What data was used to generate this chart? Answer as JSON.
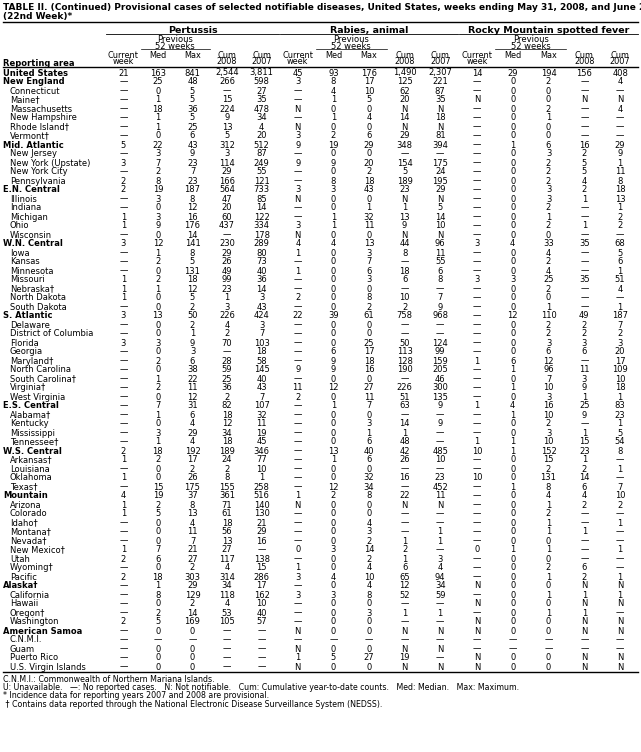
{
  "title_line1": "TABLE II. (Continued) Provisional cases of selected notifiable diseases, United States, weeks ending May 31, 2008, and June 2, 2007",
  "title_line2": "(22nd Week)*",
  "col_groups": [
    "Pertussis",
    "Rabies, animal",
    "Rocky Mountain spotted fever"
  ],
  "rows": [
    [
      "United States",
      "21",
      "163",
      "841",
      "2,544",
      "3,811",
      "45",
      "93",
      "176",
      "1,490",
      "2,307",
      "14",
      "29",
      "194",
      "156",
      "408"
    ],
    [
      "New England",
      "—",
      "25",
      "48",
      "266",
      "598",
      "3",
      "8",
      "17",
      "125",
      "221",
      "—",
      "0",
      "2",
      "—",
      "4"
    ],
    [
      "Connecticut",
      "—",
      "0",
      "5",
      "—",
      "27",
      "—",
      "4",
      "10",
      "62",
      "87",
      "—",
      "0",
      "0",
      "—",
      "—"
    ],
    [
      "Maine†",
      "—",
      "1",
      "5",
      "15",
      "35",
      "—",
      "1",
      "5",
      "20",
      "35",
      "N",
      "0",
      "0",
      "N",
      "N"
    ],
    [
      "Massachusetts",
      "—",
      "18",
      "36",
      "224",
      "478",
      "N",
      "0",
      "0",
      "N",
      "N",
      "—",
      "0",
      "2",
      "—",
      "4"
    ],
    [
      "New Hampshire",
      "—",
      "1",
      "5",
      "9",
      "34",
      "—",
      "1",
      "4",
      "14",
      "18",
      "—",
      "0",
      "1",
      "—",
      "—"
    ],
    [
      "Rhode Island†",
      "—",
      "1",
      "25",
      "13",
      "4",
      "N",
      "0",
      "0",
      "N",
      "N",
      "—",
      "0",
      "0",
      "—",
      "—"
    ],
    [
      "Vermont†",
      "—",
      "0",
      "6",
      "5",
      "20",
      "3",
      "2",
      "6",
      "29",
      "81",
      "—",
      "0",
      "0",
      "—",
      "—"
    ],
    [
      "Mid. Atlantic",
      "5",
      "22",
      "43",
      "312",
      "512",
      "9",
      "19",
      "29",
      "348",
      "394",
      "—",
      "1",
      "6",
      "16",
      "29"
    ],
    [
      "New Jersey",
      "—",
      "3",
      "9",
      "3",
      "87",
      "—",
      "0",
      "0",
      "—",
      "—",
      "—",
      "0",
      "3",
      "2",
      "9"
    ],
    [
      "New York (Upstate)",
      "3",
      "7",
      "23",
      "114",
      "249",
      "9",
      "9",
      "20",
      "154",
      "175",
      "—",
      "0",
      "2",
      "5",
      "1"
    ],
    [
      "New York City",
      "—",
      "2",
      "7",
      "29",
      "55",
      "—",
      "0",
      "2",
      "5",
      "24",
      "—",
      "0",
      "2",
      "5",
      "11"
    ],
    [
      "Pennsylvania",
      "2",
      "8",
      "23",
      "166",
      "121",
      "—",
      "8",
      "18",
      "189",
      "195",
      "—",
      "0",
      "2",
      "4",
      "8"
    ],
    [
      "E.N. Central",
      "2",
      "19",
      "187",
      "564",
      "733",
      "3",
      "3",
      "43",
      "23",
      "29",
      "—",
      "0",
      "3",
      "2",
      "18"
    ],
    [
      "Illinois",
      "—",
      "3",
      "8",
      "47",
      "85",
      "N",
      "0",
      "0",
      "N",
      "N",
      "—",
      "0",
      "3",
      "1",
      "13"
    ],
    [
      "Indiana",
      "—",
      "0",
      "12",
      "20",
      "14",
      "—",
      "0",
      "1",
      "1",
      "5",
      "—",
      "0",
      "2",
      "—",
      "1"
    ],
    [
      "Michigan",
      "1",
      "3",
      "16",
      "60",
      "122",
      "—",
      "1",
      "32",
      "13",
      "14",
      "—",
      "0",
      "1",
      "—",
      "2"
    ],
    [
      "Ohio",
      "1",
      "9",
      "176",
      "437",
      "334",
      "3",
      "1",
      "11",
      "9",
      "10",
      "—",
      "0",
      "2",
      "1",
      "2"
    ],
    [
      "Wisconsin",
      "—",
      "0",
      "14",
      "—",
      "178",
      "N",
      "0",
      "0",
      "N",
      "N",
      "—",
      "0",
      "0",
      "—",
      "—"
    ],
    [
      "W.N. Central",
      "3",
      "12",
      "141",
      "230",
      "289",
      "4",
      "4",
      "13",
      "44",
      "96",
      "3",
      "4",
      "33",
      "35",
      "68"
    ],
    [
      "Iowa",
      "—",
      "1",
      "8",
      "29",
      "80",
      "1",
      "0",
      "3",
      "8",
      "11",
      "—",
      "0",
      "4",
      "—",
      "5"
    ],
    [
      "Kansas",
      "—",
      "2",
      "5",
      "26",
      "73",
      "—",
      "0",
      "7",
      "—",
      "55",
      "—",
      "0",
      "2",
      "—",
      "6"
    ],
    [
      "Minnesota",
      "—",
      "0",
      "131",
      "49",
      "40",
      "1",
      "0",
      "6",
      "18",
      "6",
      "—",
      "0",
      "4",
      "—",
      "1"
    ],
    [
      "Missouri",
      "1",
      "2",
      "18",
      "99",
      "36",
      "—",
      "0",
      "3",
      "6",
      "8",
      "3",
      "3",
      "25",
      "35",
      "51"
    ],
    [
      "Nebraska†",
      "1",
      "1",
      "12",
      "23",
      "14",
      "—",
      "0",
      "0",
      "—",
      "—",
      "—",
      "0",
      "2",
      "—",
      "4"
    ],
    [
      "North Dakota",
      "1",
      "0",
      "5",
      "1",
      "3",
      "2",
      "0",
      "8",
      "10",
      "7",
      "—",
      "0",
      "0",
      "—",
      "—"
    ],
    [
      "South Dakota",
      "—",
      "0",
      "2",
      "3",
      "43",
      "—",
      "0",
      "2",
      "2",
      "9",
      "—",
      "0",
      "1",
      "—",
      "1"
    ],
    [
      "S. Atlantic",
      "3",
      "13",
      "50",
      "226",
      "424",
      "22",
      "39",
      "61",
      "758",
      "968",
      "—",
      "12",
      "110",
      "49",
      "187"
    ],
    [
      "Delaware",
      "—",
      "0",
      "2",
      "4",
      "3",
      "—",
      "0",
      "0",
      "—",
      "—",
      "—",
      "0",
      "2",
      "2",
      "7"
    ],
    [
      "District of Columbia",
      "—",
      "0",
      "1",
      "2",
      "7",
      "—",
      "0",
      "0",
      "—",
      "—",
      "—",
      "0",
      "2",
      "2",
      "2"
    ],
    [
      "Florida",
      "3",
      "3",
      "9",
      "70",
      "103",
      "—",
      "0",
      "25",
      "50",
      "124",
      "—",
      "0",
      "3",
      "3",
      "3"
    ],
    [
      "Georgia",
      "—",
      "0",
      "3",
      "—",
      "18",
      "—",
      "6",
      "17",
      "113",
      "99",
      "—",
      "0",
      "6",
      "6",
      "20"
    ],
    [
      "Maryland†",
      "—",
      "2",
      "6",
      "28",
      "58",
      "—",
      "9",
      "18",
      "128",
      "159",
      "1",
      "6",
      "12",
      "—",
      "17"
    ],
    [
      "North Carolina",
      "—",
      "0",
      "38",
      "59",
      "145",
      "9",
      "9",
      "16",
      "190",
      "205",
      "—",
      "1",
      "96",
      "11",
      "109"
    ],
    [
      "South Carolina†",
      "—",
      "1",
      "22",
      "25",
      "40",
      "—",
      "0",
      "0",
      "—",
      "46",
      "—",
      "0",
      "7",
      "3",
      "10"
    ],
    [
      "Virginia†",
      "—",
      "2",
      "11",
      "36",
      "43",
      "11",
      "12",
      "27",
      "226",
      "300",
      "—",
      "1",
      "10",
      "9",
      "18"
    ],
    [
      "West Virginia",
      "—",
      "0",
      "12",
      "2",
      "7",
      "2",
      "0",
      "11",
      "51",
      "135",
      "—",
      "0",
      "3",
      "1",
      "1"
    ],
    [
      "E.S. Central",
      "—",
      "7",
      "31",
      "82",
      "107",
      "—",
      "1",
      "7",
      "63",
      "9",
      "1",
      "4",
      "16",
      "25",
      "83"
    ],
    [
      "Alabama†",
      "—",
      "1",
      "6",
      "18",
      "32",
      "—",
      "0",
      "0",
      "—",
      "—",
      "—",
      "1",
      "10",
      "9",
      "23"
    ],
    [
      "Kentucky",
      "—",
      "0",
      "4",
      "12",
      "11",
      "—",
      "0",
      "3",
      "14",
      "9",
      "—",
      "0",
      "2",
      "—",
      "1"
    ],
    [
      "Mississippi",
      "—",
      "3",
      "29",
      "34",
      "19",
      "—",
      "0",
      "1",
      "1",
      "—",
      "—",
      "0",
      "3",
      "1",
      "5"
    ],
    [
      "Tennessee†",
      "—",
      "1",
      "4",
      "18",
      "45",
      "—",
      "0",
      "6",
      "48",
      "—",
      "1",
      "1",
      "10",
      "15",
      "54"
    ],
    [
      "W.S. Central",
      "2",
      "18",
      "192",
      "189",
      "346",
      "—",
      "13",
      "40",
      "42",
      "485",
      "10",
      "1",
      "152",
      "23",
      "8"
    ],
    [
      "Arkansas†",
      "1",
      "2",
      "17",
      "24",
      "77",
      "—",
      "1",
      "6",
      "26",
      "10",
      "—",
      "0",
      "15",
      "1",
      "—"
    ],
    [
      "Louisiana",
      "—",
      "0",
      "2",
      "2",
      "10",
      "—",
      "0",
      "0",
      "—",
      "—",
      "—",
      "0",
      "2",
      "2",
      "1"
    ],
    [
      "Oklahoma",
      "1",
      "0",
      "26",
      "8",
      "1",
      "—",
      "0",
      "32",
      "16",
      "23",
      "10",
      "0",
      "131",
      "14",
      "—"
    ],
    [
      "Texas†",
      "—",
      "15",
      "175",
      "155",
      "258",
      "—",
      "12",
      "34",
      "—",
      "452",
      "—",
      "1",
      "8",
      "6",
      "7"
    ],
    [
      "Mountain",
      "4",
      "19",
      "37",
      "361",
      "516",
      "1",
      "2",
      "8",
      "22",
      "11",
      "—",
      "0",
      "4",
      "4",
      "10"
    ],
    [
      "Arizona",
      "1",
      "2",
      "8",
      "71",
      "140",
      "N",
      "0",
      "0",
      "N",
      "N",
      "—",
      "0",
      "1",
      "2",
      "2"
    ],
    [
      "Colorado",
      "1",
      "5",
      "13",
      "61",
      "130",
      "—",
      "0",
      "0",
      "—",
      "—",
      "—",
      "0",
      "2",
      "—",
      "—"
    ],
    [
      "Idaho†",
      "—",
      "0",
      "4",
      "18",
      "21",
      "—",
      "0",
      "4",
      "—",
      "—",
      "—",
      "0",
      "1",
      "—",
      "1"
    ],
    [
      "Montana†",
      "—",
      "0",
      "11",
      "56",
      "29",
      "—",
      "0",
      "3",
      "—",
      "1",
      "—",
      "0",
      "1",
      "1",
      "—"
    ],
    [
      "Nevada†",
      "—",
      "0",
      "7",
      "13",
      "16",
      "—",
      "0",
      "2",
      "1",
      "1",
      "—",
      "0",
      "0",
      "—",
      "—"
    ],
    [
      "New Mexico†",
      "1",
      "7",
      "21",
      "27",
      "—",
      "0",
      "3",
      "14",
      "2",
      "—",
      "0",
      "1",
      "1",
      "1"
    ],
    [
      "Utah",
      "2",
      "6",
      "27",
      "117",
      "138",
      "—",
      "0",
      "2",
      "1",
      "3",
      "—",
      "0",
      "0",
      "—",
      "—"
    ],
    [
      "Wyoming†",
      "—",
      "0",
      "2",
      "4",
      "15",
      "1",
      "0",
      "4",
      "6",
      "4",
      "—",
      "0",
      "2",
      "6",
      "—"
    ],
    [
      "Pacific",
      "2",
      "18",
      "303",
      "314",
      "286",
      "3",
      "4",
      "10",
      "65",
      "94",
      "—",
      "0",
      "1",
      "2",
      "1"
    ],
    [
      "Alaska†",
      "—",
      "1",
      "29",
      "34",
      "17",
      "—",
      "0",
      "4",
      "12",
      "34",
      "N",
      "0",
      "0",
      "N",
      "N"
    ],
    [
      "California",
      "—",
      "8",
      "129",
      "118",
      "162",
      "3",
      "3",
      "8",
      "52",
      "59",
      "—",
      "0",
      "1",
      "1",
      "1"
    ],
    [
      "Hawaii",
      "—",
      "0",
      "2",
      "4",
      "10",
      "—",
      "0",
      "0",
      "—",
      "—",
      "N",
      "0",
      "0",
      "N",
      "N"
    ],
    [
      "Oregon†",
      "—",
      "2",
      "14",
      "53",
      "40",
      "—",
      "0",
      "3",
      "1",
      "1",
      "—",
      "0",
      "1",
      "1",
      "—"
    ],
    [
      "Washington",
      "2",
      "5",
      "169",
      "105",
      "57",
      "—",
      "0",
      "0",
      "—",
      "—",
      "N",
      "0",
      "0",
      "N",
      "N"
    ],
    [
      "American Samoa",
      "—",
      "0",
      "0",
      "—",
      "—",
      "N",
      "0",
      "0",
      "N",
      "N",
      "N",
      "0",
      "0",
      "N",
      "N"
    ],
    [
      "C.N.M.I.",
      "—",
      "—",
      "—",
      "—",
      "—",
      "—",
      "—",
      "—",
      "—",
      "—",
      "—",
      "—",
      "—",
      "—",
      "—"
    ],
    [
      "Guam",
      "—",
      "0",
      "0",
      "—",
      "—",
      "N",
      "0",
      "0",
      "N",
      "N",
      "—",
      "—",
      "—",
      "—",
      "—"
    ],
    [
      "Puerto Rico",
      "—",
      "0",
      "0",
      "—",
      "—",
      "1",
      "5",
      "27",
      "19",
      "—",
      "N",
      "0",
      "0",
      "N",
      "N"
    ],
    [
      "U.S. Virgin Islands",
      "—",
      "0",
      "0",
      "—",
      "—",
      "N",
      "0",
      "0",
      "N",
      "N",
      "N",
      "0",
      "0",
      "N",
      "N"
    ]
  ],
  "bold_rows": [
    0,
    1,
    8,
    13,
    19,
    27,
    37,
    42,
    47,
    57,
    62
  ],
  "section_rows": [
    1,
    8,
    13,
    19,
    27,
    37,
    42,
    47,
    57,
    62
  ],
  "footnotes": [
    "C.N.M.I.: Commonwealth of Northern Mariana Islands.",
    "U: Unavailable.   —: No reported cases.   N: Not notifiable.   Cum: Cumulative year-to-date counts.   Med: Median.   Max: Maximum.",
    "* Incidence data for reporting years 2007 and 2008 are provisional.",
    " † Contains data reported through the National Electronic Disease Surveillance System (NEDSS)."
  ]
}
